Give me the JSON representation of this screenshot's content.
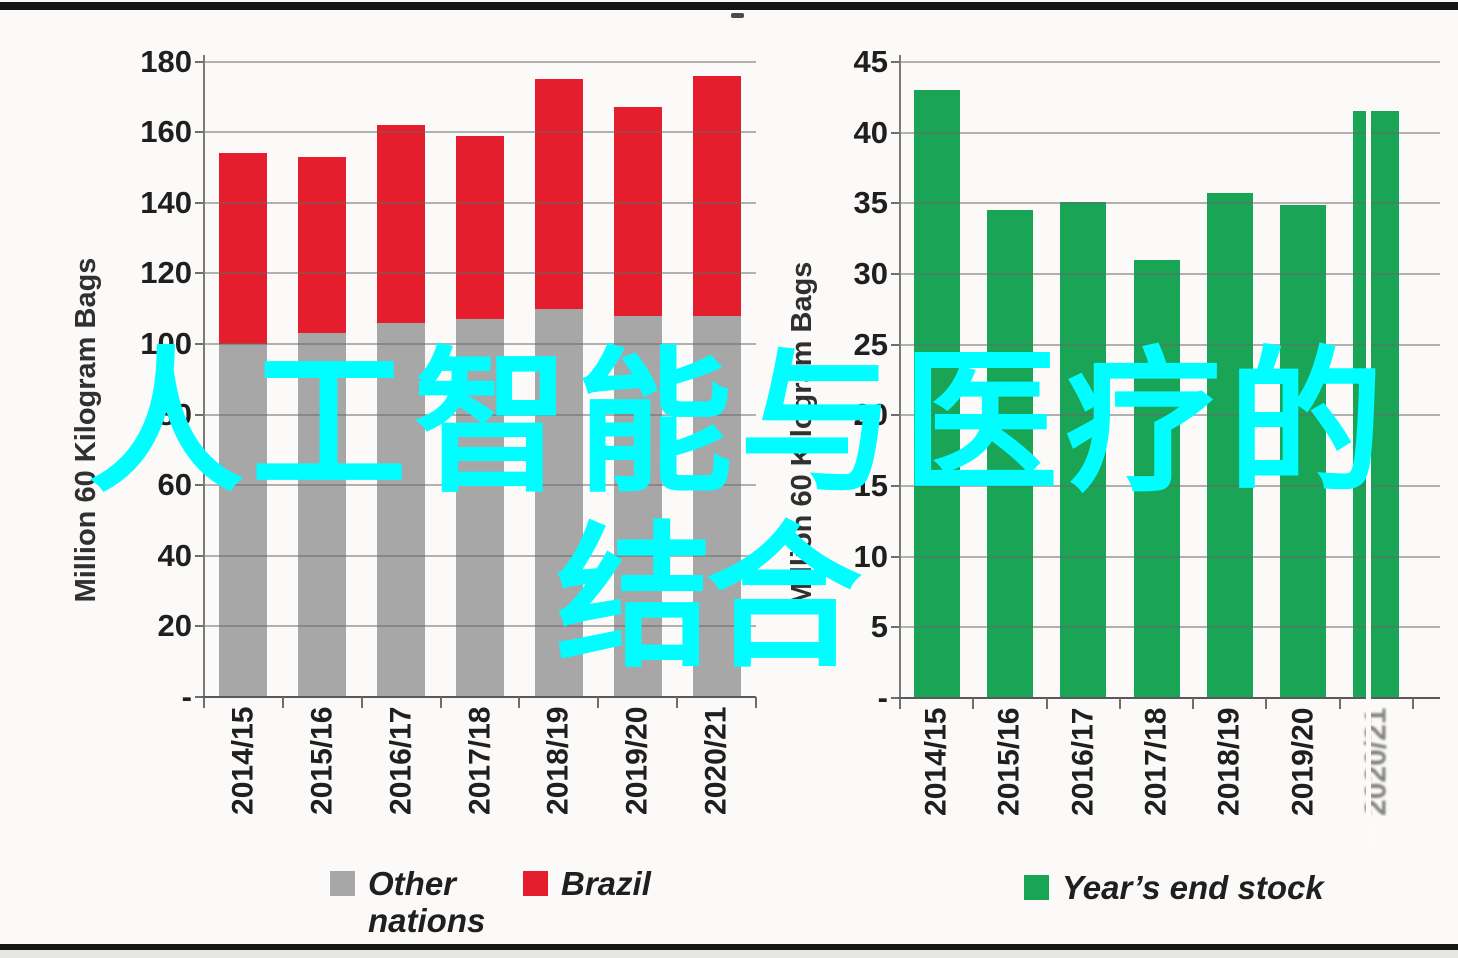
{
  "frame": {
    "top_bar_color": "#161616",
    "bottom_line_color": "#161616",
    "background_color": "#fbfaf8"
  },
  "watermark": {
    "line1": "人工智能与医疗的",
    "line2": "结合",
    "color": "#00fdff"
  },
  "chart_data": [
    {
      "id": "production",
      "type": "bar",
      "subtype": "stacked",
      "title": "",
      "xlabel": "",
      "ylabel": "Million 60 Kilogram Bags",
      "categories": [
        "2014/15",
        "2015/16",
        "2016/17",
        "2017/18",
        "2018/19",
        "2019/20",
        "2020/21"
      ],
      "series": [
        {
          "name": "Other nations",
          "color": "#a7a7a7",
          "values": [
            100,
            103,
            106,
            107,
            110,
            108,
            108
          ]
        },
        {
          "name": "Brazil",
          "color": "#e51e2d",
          "values": [
            54,
            50,
            56,
            52,
            65,
            59,
            68
          ]
        }
      ],
      "stacked_totals": [
        154,
        153,
        162,
        159,
        175,
        167,
        176
      ],
      "ylim": [
        0,
        180
      ],
      "ytick_step": 20,
      "zero_tick_label": "-",
      "grid": true,
      "gridlines_over_bars": true,
      "legend_position": "bottom",
      "legend": [
        {
          "label": "Other nations",
          "color": "#a7a7a7"
        },
        {
          "label": "Brazil",
          "color": "#e51e2d"
        }
      ]
    },
    {
      "id": "stock",
      "type": "bar",
      "subtype": "simple",
      "title": "",
      "xlabel": "",
      "ylabel": "Million 60 Kilogram Bags",
      "categories": [
        "2014/15",
        "2015/16",
        "2016/17",
        "2017/18",
        "2018/19",
        "2019/20",
        "2020/21"
      ],
      "series": [
        {
          "name": "Year’s end stock",
          "color": "#19a555",
          "values": [
            43,
            34.5,
            35.1,
            31,
            35.7,
            34.9,
            41.5
          ]
        }
      ],
      "ylim": [
        0,
        45
      ],
      "ytick_step": 5,
      "zero_tick_label": "-",
      "grid": true,
      "gridlines_over_bars": true,
      "legend_position": "bottom",
      "legend": [
        {
          "label": "Year’s end stock",
          "color": "#19a555"
        }
      ]
    }
  ]
}
